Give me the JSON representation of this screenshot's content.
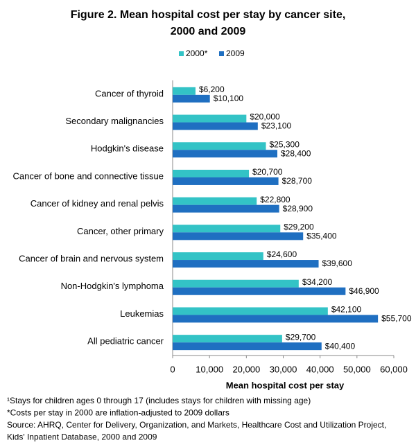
{
  "chart_data": {
    "type": "bar",
    "orientation": "horizontal",
    "title": "Figure 2. Mean hospital cost per stay by cancer site,",
    "subtitle": "2000 and 2009",
    "xlabel": "Mean hospital cost per stay",
    "categories": [
      "Cancer of thyroid",
      "Secondary malignancies",
      "Hodgkin's disease",
      "Cancer of bone and connective tissue",
      "Cancer of kidney and renal pelvis",
      "Cancer, other primary",
      "Cancer of brain and nervous system",
      "Non-Hodgkin's lymphoma",
      "Leukemias",
      "All pediatric cancer"
    ],
    "series": [
      {
        "name": "2000*",
        "color": "#33c3c6",
        "values": [
          6200,
          20000,
          25300,
          20700,
          22800,
          29200,
          24600,
          34200,
          42100,
          29700
        ],
        "value_labels": [
          "$6,200",
          "$20,000",
          "$25,300",
          "$20,700",
          "$22,800",
          "$29,200",
          "$24,600",
          "$34,200",
          "$42,100",
          "$29,700"
        ]
      },
      {
        "name": "2009",
        "color": "#1f6fc1",
        "values": [
          10100,
          23100,
          28400,
          28700,
          28900,
          35400,
          39600,
          46900,
          55700,
          40400
        ],
        "value_labels": [
          "$10,100",
          "$23,100",
          "$28,400",
          "$28,700",
          "$28,900",
          "$35,400",
          "$39,600",
          "$46,900",
          "$55,700",
          "$40,400"
        ]
      }
    ],
    "xlim": [
      0,
      60000
    ],
    "xticks": [
      0,
      {
        "value": 10000,
        "label": "10,000"
      },
      {
        "value": 20000,
        "label": "20,000"
      },
      {
        "value": 30000,
        "label": "30,000"
      },
      {
        "value": 40000,
        "label": "40,000"
      },
      {
        "value": 50000,
        "label": "50,000"
      },
      {
        "value": 60000,
        "label": "60,000"
      }
    ],
    "legend": "top",
    "footnotes": [
      "¹Stays for children ages  0 through 17 (includes stays for children with missing age)",
      "*Costs per stay in 2000 are inflation-adjusted to 2009 dollars",
      "Source: AHRQ, Center for Delivery, Organization, and Markets, Healthcare Cost and Utilization Project,",
      "Kids' Inpatient Database, 2000 and 2009"
    ]
  }
}
